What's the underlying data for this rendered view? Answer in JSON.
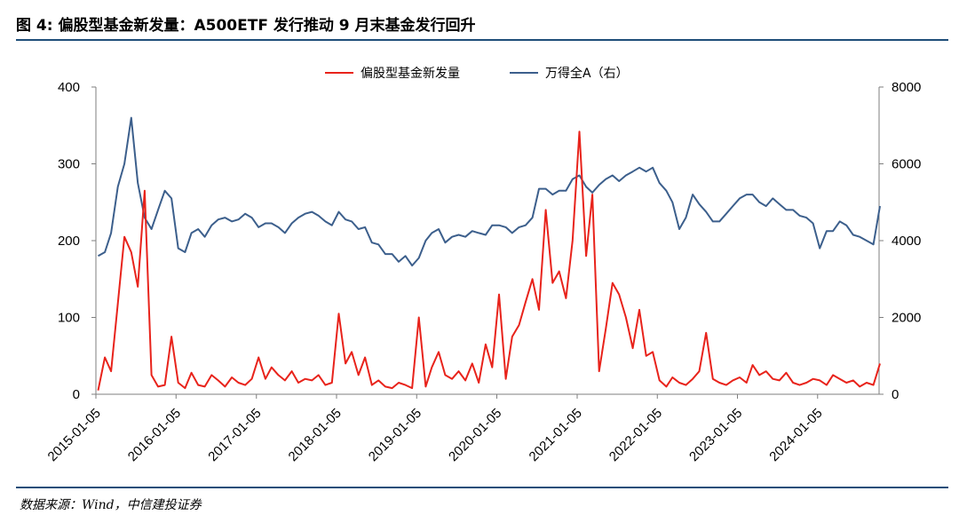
{
  "figure": {
    "title": "图 4: 偏股型基金新发量：A500ETF 发行推动 9 月末基金发行回升",
    "source": "数据来源：Wind，中信建投证券"
  },
  "chart_data": {
    "type": "line",
    "x_tick_labels": [
      "2015-01-05",
      "2016-01-05",
      "2017-01-05",
      "2018-01-05",
      "2019-01-05",
      "2020-01-05",
      "2021-01-05",
      "2022-01-05",
      "2023-01-05",
      "2024-01-05"
    ],
    "x_range": [
      "2015-01-05",
      "2024-10-11"
    ],
    "y_left": {
      "range": [
        0,
        400
      ],
      "ticks": [
        "0",
        "100",
        "200",
        "300",
        "400"
      ]
    },
    "y_right": {
      "range": [
        0,
        8000
      ],
      "ticks": [
        "0",
        "2000",
        "4000",
        "6000",
        "8000"
      ]
    },
    "grid": false,
    "legend_placement": "top-center",
    "series": [
      {
        "name": "偏股型基金新发量",
        "axis": "left",
        "color": "#e8231b",
        "x": [
          "2015-01",
          "2015-02",
          "2015-03",
          "2015-04",
          "2015-05",
          "2015-06",
          "2015-07",
          "2015-08",
          "2015-09",
          "2015-10",
          "2015-11",
          "2015-12",
          "2016-01",
          "2016-02",
          "2016-03",
          "2016-04",
          "2016-05",
          "2016-06",
          "2016-07",
          "2016-08",
          "2016-09",
          "2016-10",
          "2016-11",
          "2016-12",
          "2017-01",
          "2017-02",
          "2017-03",
          "2017-04",
          "2017-05",
          "2017-06",
          "2017-07",
          "2017-08",
          "2017-09",
          "2017-10",
          "2017-11",
          "2017-12",
          "2018-01",
          "2018-02",
          "2018-03",
          "2018-04",
          "2018-05",
          "2018-06",
          "2018-07",
          "2018-08",
          "2018-09",
          "2018-10",
          "2018-11",
          "2018-12",
          "2019-01",
          "2019-02",
          "2019-03",
          "2019-04",
          "2019-05",
          "2019-06",
          "2019-07",
          "2019-08",
          "2019-09",
          "2019-10",
          "2019-11",
          "2019-12",
          "2020-01",
          "2020-02",
          "2020-03",
          "2020-04",
          "2020-05",
          "2020-06",
          "2020-07",
          "2020-08",
          "2020-09",
          "2020-10",
          "2020-11",
          "2020-12",
          "2021-01",
          "2021-02",
          "2021-03",
          "2021-04",
          "2021-05",
          "2021-06",
          "2021-07",
          "2021-08",
          "2021-09",
          "2021-10",
          "2021-11",
          "2021-12",
          "2022-01",
          "2022-02",
          "2022-03",
          "2022-04",
          "2022-05",
          "2022-06",
          "2022-07",
          "2022-08",
          "2022-09",
          "2022-10",
          "2022-11",
          "2022-12",
          "2023-01",
          "2023-02",
          "2023-03",
          "2023-04",
          "2023-05",
          "2023-06",
          "2023-07",
          "2023-08",
          "2023-09",
          "2023-10",
          "2023-11",
          "2023-12",
          "2024-01",
          "2024-02",
          "2024-03",
          "2024-04",
          "2024-05",
          "2024-06",
          "2024-07",
          "2024-08",
          "2024-09",
          "2024-10"
        ],
        "values": [
          5,
          48,
          30,
          118,
          205,
          185,
          140,
          265,
          25,
          10,
          12,
          75,
          15,
          8,
          28,
          12,
          10,
          25,
          18,
          10,
          22,
          15,
          12,
          20,
          48,
          20,
          35,
          25,
          18,
          30,
          15,
          20,
          18,
          25,
          12,
          15,
          105,
          40,
          55,
          25,
          48,
          12,
          18,
          10,
          8,
          15,
          12,
          8,
          100,
          10,
          35,
          55,
          25,
          20,
          30,
          18,
          40,
          15,
          65,
          35,
          130,
          20,
          75,
          90,
          120,
          150,
          110,
          240,
          145,
          160,
          125,
          200,
          342,
          180,
          260,
          30,
          85,
          145,
          130,
          100,
          60,
          110,
          50,
          55,
          18,
          10,
          22,
          15,
          12,
          20,
          30,
          80,
          20,
          15,
          12,
          18,
          22,
          15,
          38,
          25,
          30,
          20,
          18,
          28,
          15,
          12,
          15,
          20,
          18,
          12,
          25,
          20,
          15,
          18,
          10,
          15,
          12,
          40
        ]
      },
      {
        "name": "万得全A（右）",
        "axis": "right",
        "color": "#3c5f8c",
        "x": [
          "2015-01",
          "2015-02",
          "2015-03",
          "2015-04",
          "2015-05",
          "2015-06",
          "2015-07",
          "2015-08",
          "2015-09",
          "2015-10",
          "2015-11",
          "2015-12",
          "2016-01",
          "2016-02",
          "2016-03",
          "2016-04",
          "2016-05",
          "2016-06",
          "2016-07",
          "2016-08",
          "2016-09",
          "2016-10",
          "2016-11",
          "2016-12",
          "2017-01",
          "2017-02",
          "2017-03",
          "2017-04",
          "2017-05",
          "2017-06",
          "2017-07",
          "2017-08",
          "2017-09",
          "2017-10",
          "2017-11",
          "2017-12",
          "2018-01",
          "2018-02",
          "2018-03",
          "2018-04",
          "2018-05",
          "2018-06",
          "2018-07",
          "2018-08",
          "2018-09",
          "2018-10",
          "2018-11",
          "2018-12",
          "2019-01",
          "2019-02",
          "2019-03",
          "2019-04",
          "2019-05",
          "2019-06",
          "2019-07",
          "2019-08",
          "2019-09",
          "2019-10",
          "2019-11",
          "2019-12",
          "2020-01",
          "2020-02",
          "2020-03",
          "2020-04",
          "2020-05",
          "2020-06",
          "2020-07",
          "2020-08",
          "2020-09",
          "2020-10",
          "2020-11",
          "2020-12",
          "2021-01",
          "2021-02",
          "2021-03",
          "2021-04",
          "2021-05",
          "2021-06",
          "2021-07",
          "2021-08",
          "2021-09",
          "2021-10",
          "2021-11",
          "2021-12",
          "2022-01",
          "2022-02",
          "2022-03",
          "2022-04",
          "2022-05",
          "2022-06",
          "2022-07",
          "2022-08",
          "2022-09",
          "2022-10",
          "2022-11",
          "2022-12",
          "2023-01",
          "2023-02",
          "2023-03",
          "2023-04",
          "2023-05",
          "2023-06",
          "2023-07",
          "2023-08",
          "2023-09",
          "2023-10",
          "2023-11",
          "2023-12",
          "2024-01",
          "2024-02",
          "2024-03",
          "2024-04",
          "2024-05",
          "2024-06",
          "2024-07",
          "2024-08",
          "2024-09",
          "2024-10"
        ],
        "values": [
          3600,
          3700,
          4200,
          5400,
          6000,
          7200,
          5500,
          4600,
          4300,
          4800,
          5300,
          5100,
          3800,
          3700,
          4200,
          4300,
          4100,
          4400,
          4550,
          4600,
          4500,
          4550,
          4700,
          4600,
          4350,
          4450,
          4450,
          4350,
          4200,
          4450,
          4600,
          4700,
          4750,
          4650,
          4500,
          4400,
          4750,
          4550,
          4500,
          4300,
          4350,
          3950,
          3900,
          3650,
          3650,
          3450,
          3600,
          3350,
          3550,
          4000,
          4200,
          4300,
          3950,
          4100,
          4150,
          4100,
          4250,
          4200,
          4150,
          4400,
          4400,
          4350,
          4200,
          4350,
          4400,
          4600,
          5350,
          5350,
          5200,
          5300,
          5300,
          5600,
          5700,
          5400,
          5250,
          5450,
          5600,
          5700,
          5550,
          5700,
          5800,
          5900,
          5800,
          5900,
          5500,
          5300,
          5000,
          4300,
          4600,
          5200,
          4950,
          4750,
          4500,
          4500,
          4700,
          4900,
          5100,
          5200,
          5200,
          5000,
          4900,
          5100,
          4950,
          4800,
          4800,
          4650,
          4600,
          4450,
          3800,
          4250,
          4250,
          4500,
          4400,
          4150,
          4100,
          4000,
          3900,
          4900
        ]
      }
    ]
  }
}
